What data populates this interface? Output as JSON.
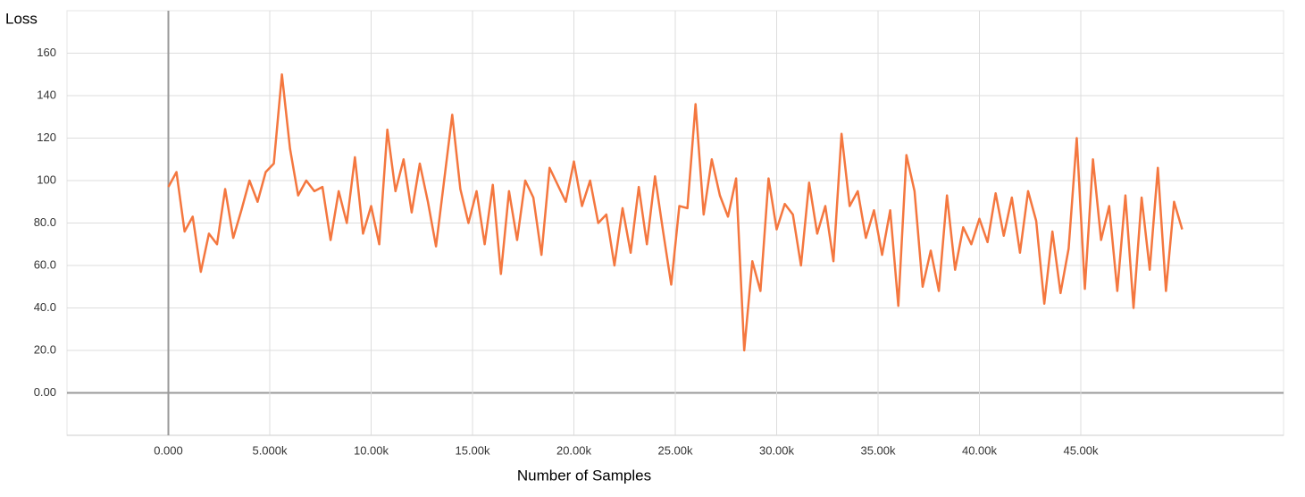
{
  "chart_data": {
    "type": "line",
    "ylabel": "Loss",
    "xlabel": "Number of Samples",
    "color": "#f4773f",
    "grid": true,
    "xlim": [
      -5000,
      55000
    ],
    "ylim": [
      -20,
      180
    ],
    "xticks": [
      {
        "value": 0,
        "label": "0.000"
      },
      {
        "value": 5000,
        "label": "5.000k"
      },
      {
        "value": 10000,
        "label": "10.00k"
      },
      {
        "value": 15000,
        "label": "15.00k"
      },
      {
        "value": 20000,
        "label": "20.00k"
      },
      {
        "value": 25000,
        "label": "25.00k"
      },
      {
        "value": 30000,
        "label": "30.00k"
      },
      {
        "value": 35000,
        "label": "35.00k"
      },
      {
        "value": 40000,
        "label": "40.00k"
      },
      {
        "value": 45000,
        "label": "45.00k"
      }
    ],
    "yticks": [
      {
        "value": 0,
        "label": "0.00"
      },
      {
        "value": 20,
        "label": "20.0"
      },
      {
        "value": 40,
        "label": "40.0"
      },
      {
        "value": 60,
        "label": "60.0"
      },
      {
        "value": 80,
        "label": "80.0"
      },
      100,
      120,
      140,
      160
    ],
    "x": [
      0,
      400,
      800,
      1200,
      1600,
      2000,
      2400,
      2800,
      3200,
      3600,
      4000,
      4400,
      4800,
      5200,
      5600,
      6000,
      6400,
      6800,
      7200,
      7600,
      8000,
      8400,
      8800,
      9200,
      9600,
      10000,
      10400,
      10800,
      11200,
      11600,
      12000,
      12400,
      12800,
      13200,
      13600,
      14000,
      14400,
      14800,
      15200,
      15600,
      16000,
      16400,
      16800,
      17200,
      17600,
      18000,
      18400,
      18800,
      19200,
      19600,
      20000,
      20400,
      20800,
      21200,
      21600,
      22000,
      22400,
      22800,
      23200,
      23600,
      24000,
      24400,
      24800,
      25200,
      25600,
      26000,
      26400,
      26800,
      27200,
      27600,
      28000,
      28400,
      28800,
      29200,
      29600,
      30000,
      30400,
      30800,
      31200,
      31600,
      32000,
      32400,
      32800,
      33200,
      33600,
      34000,
      34400,
      34800,
      35200,
      35600,
      36000,
      36400,
      36800,
      37200,
      37600,
      38000,
      38400,
      38800,
      39200,
      39600,
      40000,
      40400,
      40800,
      41200,
      41600,
      42000,
      42400,
      42800,
      43200,
      43600,
      44000,
      44400,
      44800,
      45200,
      45600,
      46000,
      46400,
      46800,
      47200,
      47600,
      48000,
      48400,
      48800,
      49200,
      49600,
      50000
    ],
    "values": [
      97,
      104,
      76,
      83,
      57,
      75,
      70,
      96,
      73,
      86,
      100,
      90,
      104,
      108,
      150,
      115,
      93,
      100,
      95,
      97,
      72,
      95,
      80,
      111,
      75,
      88,
      70,
      124,
      95,
      110,
      85,
      108,
      90,
      69,
      100,
      131,
      96,
      80,
      95,
      70,
      98,
      56,
      95,
      72,
      100,
      92,
      65,
      106,
      98,
      90,
      109,
      88,
      100,
      80,
      84,
      60,
      87,
      66,
      97,
      70,
      102,
      76,
      51,
      88,
      87,
      136,
      84,
      110,
      93,
      83,
      101,
      20,
      62,
      48,
      101,
      77,
      89,
      84,
      60,
      99,
      75,
      88,
      62,
      122,
      88,
      95,
      73,
      86,
      65,
      86,
      41,
      112,
      95,
      50,
      67,
      48,
      93,
      58,
      78,
      70,
      82,
      71,
      94,
      74,
      92,
      66,
      95,
      81,
      42,
      76,
      47,
      68,
      120,
      49,
      110,
      72,
      88,
      48,
      93,
      40,
      92,
      58,
      106,
      48,
      90,
      77
    ]
  }
}
